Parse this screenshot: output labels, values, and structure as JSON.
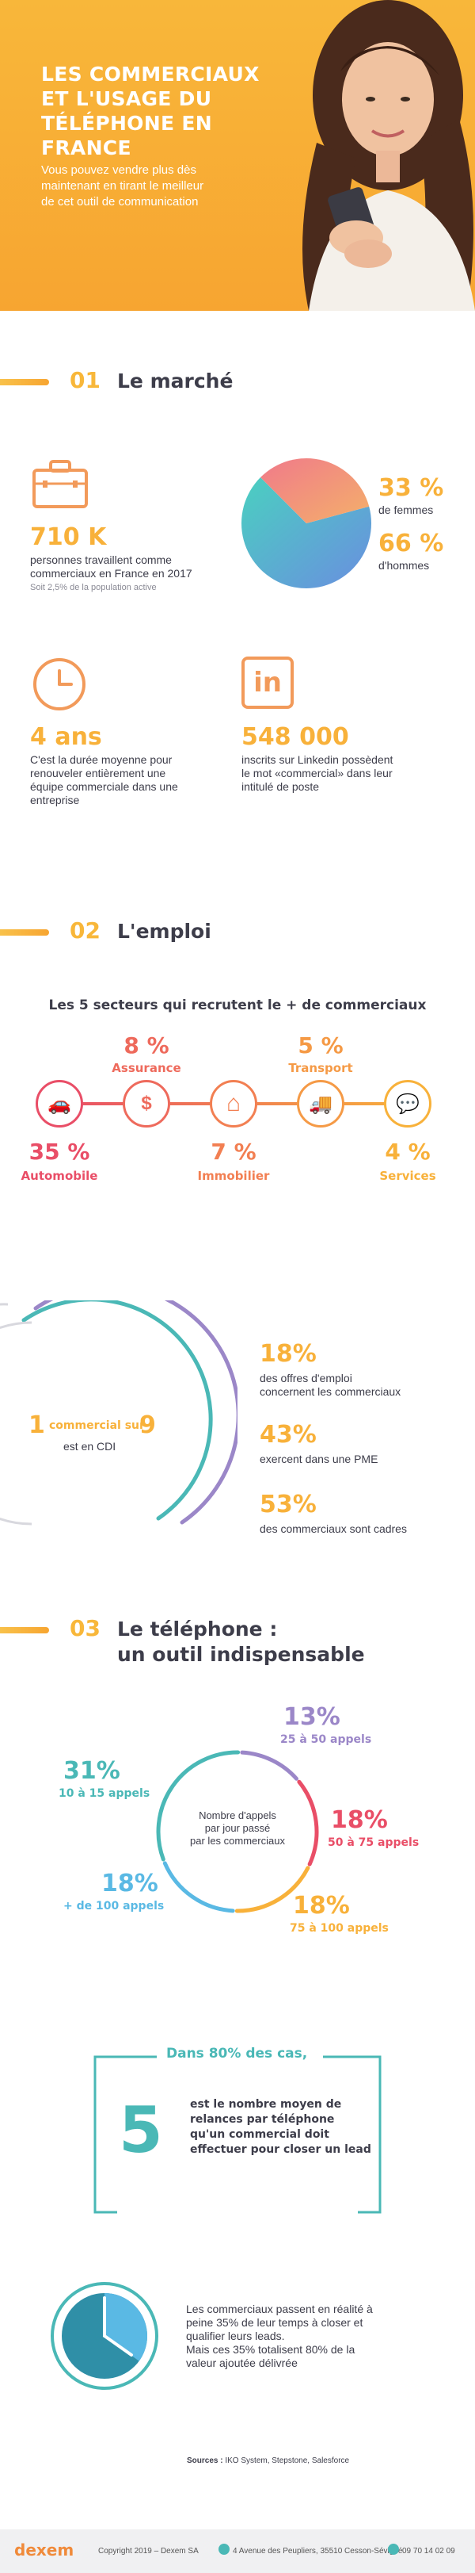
{
  "colors": {
    "orange": "#f8b13a",
    "red": "#e94e67",
    "purple": "#9b87c8",
    "teal": "#4ab8b6",
    "blue": "#5ab9e4",
    "dark": "#3d3d4a"
  },
  "hero": {
    "title_lines": [
      "LES COMMERCIAUX",
      "ET L'USAGE DU",
      "TÉLÉPHONE EN FRANCE"
    ],
    "subtitle_lines": [
      "Vous pouvez vendre plus dès",
      "maintenant en tirant le meilleur",
      "de cet outil de communication"
    ]
  },
  "section1": {
    "number": "01",
    "title": "Le marché",
    "stat1": {
      "value": "710 K",
      "line1": "personnes travaillent comme",
      "line2": "commerciaux en France en 2017",
      "note": "Soit 2,5% de la population active"
    },
    "pie": {
      "women_pct": "33 %",
      "women_label": "de femmes",
      "men_pct": "66 %",
      "men_label": "d'hommes",
      "women_value": 33,
      "men_value": 66
    },
    "stat2": {
      "value": "4 ans",
      "line1": "C'est la durée moyenne pour",
      "line2": "renouveler entièrement une",
      "line3": "équipe commerciale dans une",
      "line4": "entreprise"
    },
    "stat3": {
      "value": "548 000",
      "line1": "inscrits sur Linkedin possèdent",
      "line2": "le mot «commercial» dans leur",
      "line3": "intitulé de poste",
      "icon_text": "in"
    }
  },
  "section2": {
    "number": "02",
    "title": "L'emploi",
    "sectors_title": "Les 5 secteurs qui recrutent le + de commerciaux",
    "sectors": [
      {
        "pct": "35 %",
        "label": "Automobile",
        "icon": "car-icon",
        "glyph": "🚗",
        "color": "#e94e67"
      },
      {
        "pct": "8 %",
        "label": "Assurance",
        "icon": "money-icon",
        "glyph": "$",
        "color": "#ee6a5c"
      },
      {
        "pct": "7 %",
        "label": "Immobilier",
        "icon": "house-icon",
        "glyph": "⌂",
        "color": "#f27f52"
      },
      {
        "pct": "5 %",
        "label": "Transport",
        "icon": "truck-icon",
        "glyph": "🚚",
        "color": "#f59a46"
      },
      {
        "pct": "4 %",
        "label": "Services",
        "icon": "chat-icon",
        "glyph": "💬",
        "color": "#f8b13a"
      }
    ],
    "ratio": {
      "one": "1",
      "middle": "commercial sur",
      "nine": "9",
      "bottom": "est en CDI"
    },
    "facts": [
      {
        "pct": "18%",
        "line1": "des offres d'emploi",
        "line2": "concernent les commerciaux"
      },
      {
        "pct": "43%",
        "line1": "exercent dans une PME",
        "line2": ""
      },
      {
        "pct": "53%",
        "line1": "des commerciaux  sont cadres",
        "line2": ""
      }
    ]
  },
  "section3": {
    "number": "03",
    "title_line1": "Le téléphone :",
    "title_line2": "un outil indispensable",
    "center_lines": [
      "Nombre d'appels",
      "par jour passé",
      "par les commerciaux"
    ],
    "segments": [
      {
        "pct": "31%",
        "label": "10 à 15 appels",
        "value": 31,
        "color": "#4ab8b6"
      },
      {
        "pct": "13%",
        "label": "25 à 50 appels",
        "value": 13,
        "color": "#9b87c8"
      },
      {
        "pct": "18%",
        "label": "50 à 75 appels",
        "value": 18,
        "color": "#e94e67"
      },
      {
        "pct": "18%",
        "label": "75 à 100 appels",
        "value": 18,
        "color": "#f8b13a"
      },
      {
        "pct": "18%",
        "label": "+ de 100 appels",
        "value": 18,
        "color": "#5ab9e4"
      }
    ],
    "relance": {
      "header": "Dans 80% des cas,",
      "number": "5",
      "line1": "est le nombre moyen de",
      "line2": "relances par téléphone",
      "line3": "qu'un commercial doit",
      "line4": "effectuer pour closer un lead"
    },
    "time": {
      "line1": "Les commerciaux passent en réalité à",
      "line2": "peine 35% de leur temps à closer et",
      "line3": "qualifier leurs leads.",
      "line4": "Mais ces 35% totalisent 80% de la",
      "line5": "valeur ajoutée délivrée",
      "value": 35
    }
  },
  "sources": {
    "label": "Sources :",
    "text": "IKO System, Stepstone, Salesforce"
  },
  "footer": {
    "logo": "dexem",
    "copyright": "Copyright 2019 – Dexem SA",
    "address": "4 Avenue des Peupliers, 35510 Cesson-Sévigné",
    "phone": "09 70 14 02 09"
  }
}
